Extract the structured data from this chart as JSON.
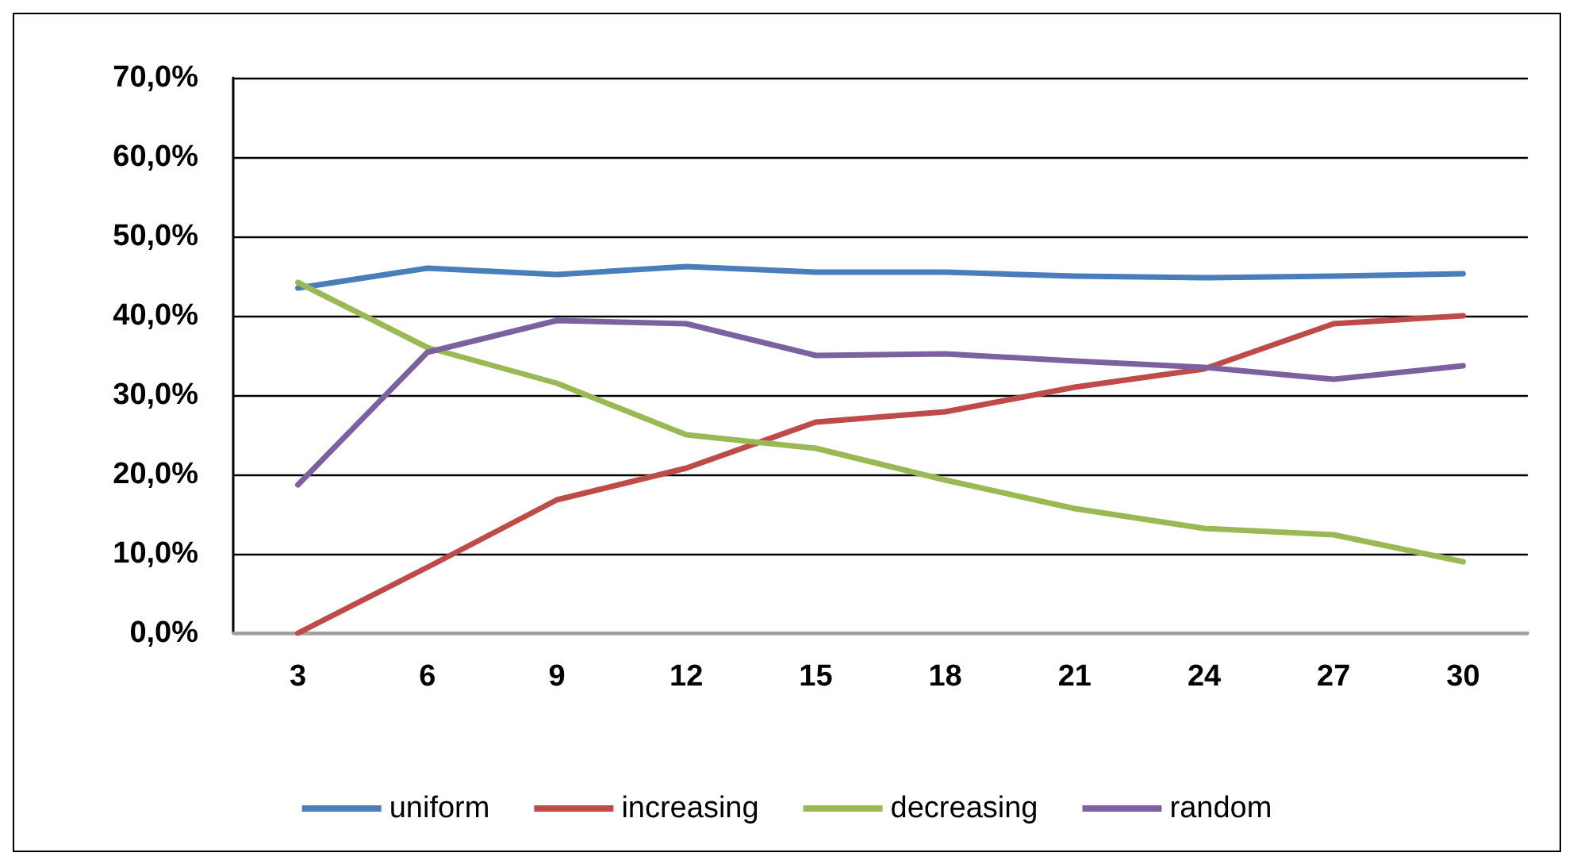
{
  "chart_data": {
    "type": "line",
    "categories": [
      "3",
      "6",
      "9",
      "12",
      "15",
      "18",
      "21",
      "24",
      "27",
      "30"
    ],
    "series": [
      {
        "name": "uniform",
        "color": "#4a7ebb",
        "values": [
          43.5,
          46,
          45.2,
          46.2,
          45.5,
          45.5,
          45,
          44.8,
          45,
          45.3
        ]
      },
      {
        "name": "increasing",
        "color": "#be4b48",
        "values": [
          0,
          8.3,
          16.8,
          20.8,
          26.6,
          27.9,
          31,
          33.3,
          39,
          40
        ]
      },
      {
        "name": "decreasing",
        "color": "#98b954",
        "values": [
          44.2,
          36,
          31.5,
          25,
          23.3,
          19.3,
          15.7,
          13.2,
          12.4,
          9
        ]
      },
      {
        "name": "random",
        "color": "#7d60a0",
        "values": [
          18.7,
          35.4,
          39.4,
          39,
          35,
          35.2,
          34.3,
          33.5,
          32,
          33.7
        ]
      }
    ],
    "ylim": [
      0,
      70
    ],
    "yticks": [
      {
        "value": 0,
        "label": "0,0%"
      },
      {
        "value": 10,
        "label": "10,0%"
      },
      {
        "value": 20,
        "label": "20,0%"
      },
      {
        "value": 30,
        "label": "30,0%"
      },
      {
        "value": 40,
        "label": "40,0%"
      },
      {
        "value": 50,
        "label": "50,0%"
      },
      {
        "value": 60,
        "label": "60,0%"
      },
      {
        "value": 70,
        "label": "70,0%"
      }
    ],
    "grid": "y",
    "legend": "bottom",
    "marker": "none",
    "line_style": "solid"
  }
}
